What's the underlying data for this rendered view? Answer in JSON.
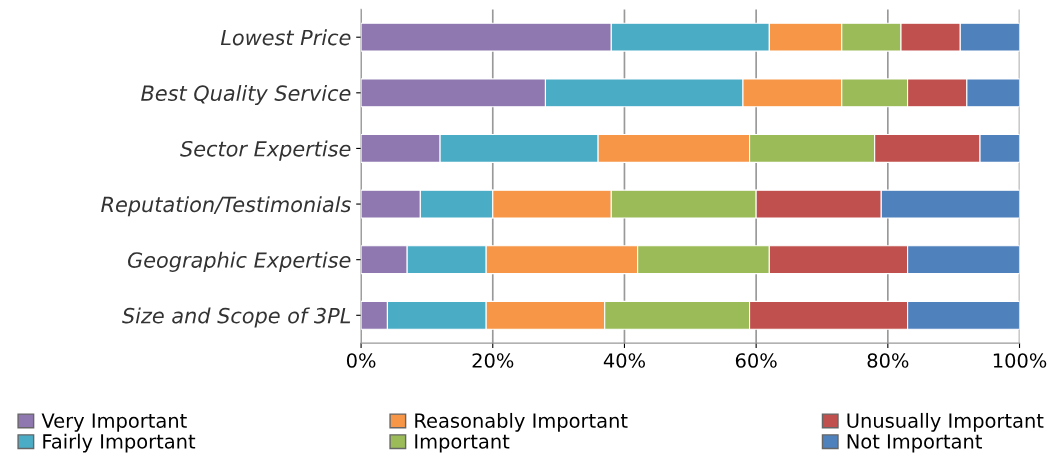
{
  "chart_data": {
    "type": "bar",
    "orientation": "horizontal",
    "stacked": true,
    "categories": [
      "Lowest Price",
      "Best Quality Service",
      "Sector Expertise",
      "Reputation/Testimonials",
      "Geographic Expertise",
      "Size and Scope of 3PL"
    ],
    "series": [
      {
        "name": "Very Important",
        "color": "#8f78b0",
        "values": [
          38,
          28,
          12,
          9,
          7,
          4
        ]
      },
      {
        "name": "Fairly Important",
        "color": "#4bacc6",
        "values": [
          24,
          30,
          24,
          11,
          12,
          15
        ]
      },
      {
        "name": "Reasonably Important",
        "color": "#f79646",
        "values": [
          11,
          15,
          23,
          18,
          23,
          18
        ]
      },
      {
        "name": "Important",
        "color": "#9bbb59",
        "values": [
          9,
          10,
          19,
          22,
          20,
          22
        ]
      },
      {
        "name": "Unusually Important",
        "color": "#c0504d",
        "values": [
          9,
          9,
          16,
          19,
          21,
          24
        ]
      },
      {
        "name": "Not Important",
        "color": "#4f81bd",
        "values": [
          9,
          8,
          6,
          21,
          17,
          17
        ]
      }
    ],
    "xlim": [
      0,
      100
    ],
    "xticks": [
      {
        "value": 0,
        "label": "0%"
      },
      {
        "value": 20,
        "label": "20%"
      },
      {
        "value": 40,
        "label": "40%"
      },
      {
        "value": 60,
        "label": "60%"
      },
      {
        "value": 80,
        "label": "80%"
      },
      {
        "value": 100,
        "label": "100%"
      }
    ],
    "grid": "x",
    "legend": "bottom"
  }
}
